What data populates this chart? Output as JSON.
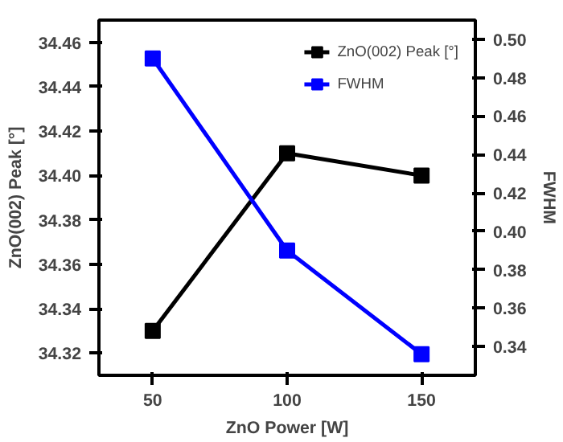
{
  "chart_data": {
    "type": "line",
    "xlabel": "ZnO Power [W]",
    "ylabel": "ZnO(002) Peak [°]",
    "y2label": "FWHM",
    "x": [
      50,
      100,
      150
    ],
    "xlim": [
      30,
      170
    ],
    "xticks": [
      50,
      100,
      150
    ],
    "ylim": [
      34.31,
      34.47
    ],
    "yticks": [
      34.32,
      34.34,
      34.36,
      34.38,
      {
        "value": 34.4,
        "label": "34.40"
      },
      34.42,
      34.44,
      34.46
    ],
    "y2lim": [
      0.325,
      0.51
    ],
    "y2ticks": [
      0.34,
      0.36,
      0.38,
      {
        "value": 0.4,
        "label": "0.40"
      },
      0.42,
      0.44,
      0.46,
      0.48,
      {
        "value": 0.5,
        "label": "0.50"
      }
    ],
    "series": [
      {
        "name": "ZnO(002) Peak [°]",
        "color": "#000000",
        "values": [
          34.33,
          34.41,
          34.4
        ]
      },
      {
        "name": "FWHM",
        "color": "#0000ff",
        "values": [
          0.49,
          0.39,
          0.336
        ],
        "axis": "y2"
      }
    ],
    "marker": "square",
    "line_style": "solid",
    "grid": false,
    "legend": "top right"
  }
}
